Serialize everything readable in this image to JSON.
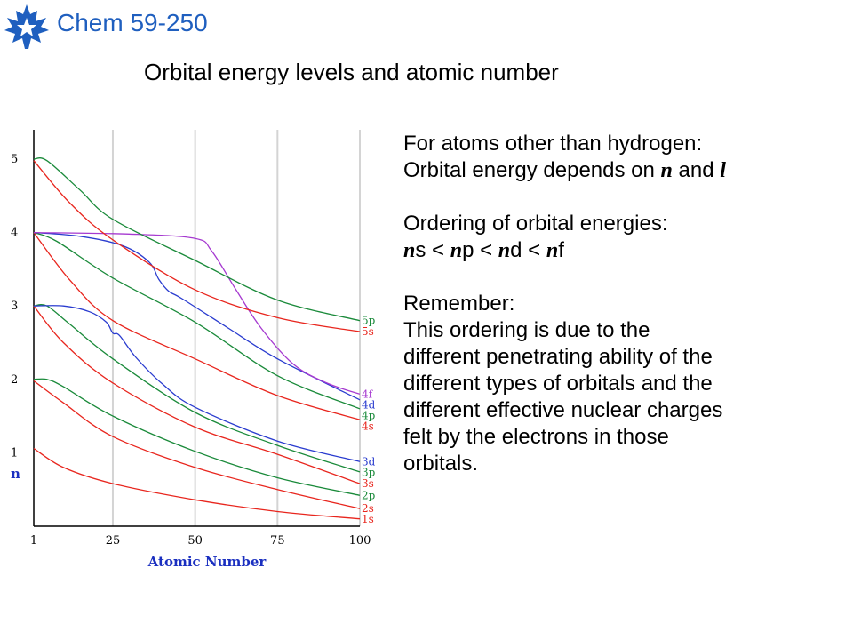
{
  "header": {
    "course_title": "Chem 59-250",
    "slide_title": "Orbital energy levels and atomic number",
    "logo_icon": "maple-leaf-icon",
    "brand_color": "#1f5fbf"
  },
  "text": {
    "line1": "For atoms other than hydrogen:",
    "line2_pre": "Orbital energy depends on ",
    "n": "n",
    "and": " and ",
    "l": "l",
    "ordering_heading": "Ordering of orbital energies:",
    "ordering_s": "s < ",
    "ordering_p": "p < ",
    "ordering_d": "d < ",
    "ordering_f": "f",
    "remember_heading": "Remember:",
    "remember_lines": [
      "This ordering is due to the",
      "different penetrating ability of the",
      "different types of orbitals and the",
      "different effective nuclear charges",
      "felt by the electrons in those",
      "orbitals."
    ]
  },
  "chart_data": {
    "type": "line",
    "title": "",
    "xlabel": "Atomic Number",
    "ylabel": "n",
    "xlim": [
      1,
      100
    ],
    "ylim": [
      0,
      5.4
    ],
    "x_ticks": [
      1,
      25,
      50,
      75,
      100
    ],
    "y_ticks": [
      1,
      2,
      3,
      4,
      5
    ],
    "grid": "vertical at x = 25, 50, 75, 100",
    "colors": {
      "s": "#e8261e",
      "p": "#1a8a3a",
      "d": "#2a3ccf",
      "f": "#a63ad0"
    },
    "series": [
      {
        "name": "1s",
        "kind": "s",
        "points": [
          [
            1,
            1.06
          ],
          [
            10,
            0.8
          ],
          [
            25,
            0.58
          ],
          [
            50,
            0.36
          ],
          [
            75,
            0.2
          ],
          [
            100,
            0.1
          ]
        ]
      },
      {
        "name": "2s",
        "kind": "s",
        "points": [
          [
            1,
            1.98
          ],
          [
            10,
            1.68
          ],
          [
            25,
            1.22
          ],
          [
            50,
            0.8
          ],
          [
            75,
            0.5
          ],
          [
            100,
            0.24
          ]
        ]
      },
      {
        "name": "2p",
        "kind": "p",
        "points": [
          [
            1,
            2.0
          ],
          [
            5,
            2.0
          ],
          [
            10,
            1.9
          ],
          [
            25,
            1.5
          ],
          [
            50,
            1.02
          ],
          [
            75,
            0.66
          ],
          [
            100,
            0.42
          ]
        ]
      },
      {
        "name": "3s",
        "kind": "s",
        "points": [
          [
            1,
            3.0
          ],
          [
            10,
            2.5
          ],
          [
            25,
            1.95
          ],
          [
            50,
            1.35
          ],
          [
            75,
            0.98
          ],
          [
            100,
            0.58
          ]
        ]
      },
      {
        "name": "3p",
        "kind": "p",
        "points": [
          [
            1,
            3.0
          ],
          [
            5,
            3.0
          ],
          [
            12,
            2.75
          ],
          [
            25,
            2.28
          ],
          [
            50,
            1.55
          ],
          [
            75,
            1.1
          ],
          [
            100,
            0.74
          ]
        ]
      },
      {
        "name": "3d",
        "kind": "d",
        "points": [
          [
            1,
            3.0
          ],
          [
            10,
            3.0
          ],
          [
            18,
            2.92
          ],
          [
            23,
            2.78
          ],
          [
            25,
            2.63
          ],
          [
            27,
            2.6
          ],
          [
            32,
            2.3
          ],
          [
            40,
            1.94
          ],
          [
            50,
            1.62
          ],
          [
            75,
            1.16
          ],
          [
            100,
            0.88
          ]
        ]
      },
      {
        "name": "4s",
        "kind": "s",
        "points": [
          [
            1,
            4.0
          ],
          [
            12,
            3.35
          ],
          [
            25,
            2.8
          ],
          [
            50,
            2.28
          ],
          [
            75,
            1.78
          ],
          [
            100,
            1.45
          ]
        ]
      },
      {
        "name": "4p",
        "kind": "p",
        "points": [
          [
            1,
            4.0
          ],
          [
            8,
            3.88
          ],
          [
            25,
            3.38
          ],
          [
            50,
            2.78
          ],
          [
            75,
            2.05
          ],
          [
            100,
            1.6
          ]
        ]
      },
      {
        "name": "4d",
        "kind": "d",
        "points": [
          [
            1,
            4.0
          ],
          [
            15,
            3.95
          ],
          [
            28,
            3.82
          ],
          [
            36,
            3.6
          ],
          [
            39,
            3.36
          ],
          [
            42,
            3.2
          ],
          [
            46,
            3.1
          ],
          [
            60,
            2.7
          ],
          [
            75,
            2.28
          ],
          [
            100,
            1.72
          ]
        ]
      },
      {
        "name": "4f",
        "kind": "f",
        "points": [
          [
            1,
            4.0
          ],
          [
            30,
            3.98
          ],
          [
            50,
            3.92
          ],
          [
            55,
            3.75
          ],
          [
            62,
            3.25
          ],
          [
            70,
            2.7
          ],
          [
            80,
            2.2
          ],
          [
            90,
            1.95
          ],
          [
            100,
            1.8
          ]
        ]
      },
      {
        "name": "5s",
        "kind": "s",
        "points": [
          [
            1,
            4.98
          ],
          [
            12,
            4.4
          ],
          [
            25,
            3.9
          ],
          [
            50,
            3.22
          ],
          [
            75,
            2.84
          ],
          [
            100,
            2.65
          ]
        ]
      },
      {
        "name": "5p",
        "kind": "p",
        "points": [
          [
            1,
            5.0
          ],
          [
            5,
            4.98
          ],
          [
            15,
            4.58
          ],
          [
            25,
            4.18
          ],
          [
            50,
            3.62
          ],
          [
            75,
            3.08
          ],
          [
            100,
            2.8
          ]
        ]
      }
    ]
  }
}
